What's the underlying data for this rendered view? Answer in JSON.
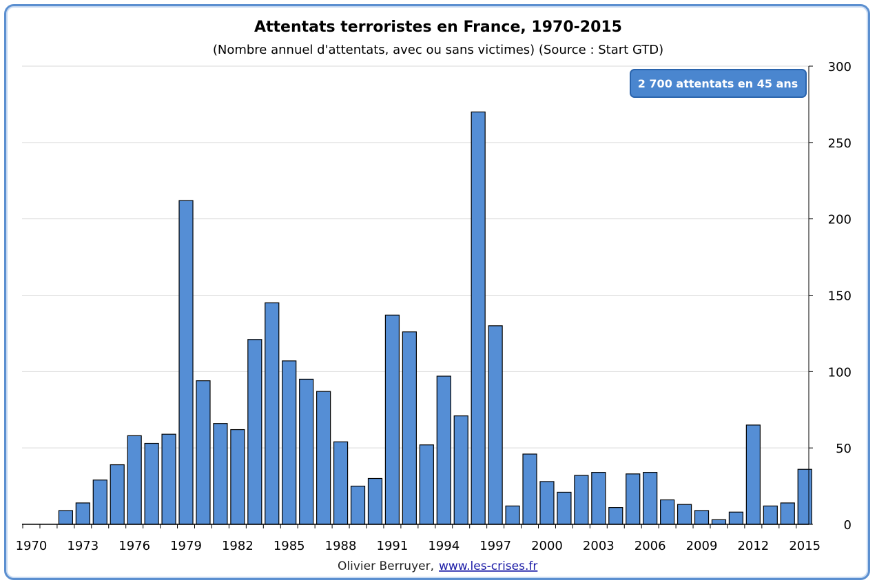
{
  "chart_data": {
    "type": "bar",
    "title": "Attentats terroristes en France,  1970-2015",
    "subtitle": "(Nombre annuel d'attentats, avec ou sans victimes) (Source : Start GTD)",
    "xlabel": "",
    "ylabel": "",
    "ylim": [
      0,
      300
    ],
    "y_ticks": [
      0,
      50,
      100,
      150,
      200,
      250,
      300
    ],
    "y_axis_side": "right",
    "grid": true,
    "x_tick_labels": [
      "1970",
      "1973",
      "1976",
      "1979",
      "1982",
      "1985",
      "1988",
      "1991",
      "1994",
      "1997",
      "2000",
      "2003",
      "2006",
      "2009",
      "2012",
      "2015"
    ],
    "categories": [
      1970,
      1971,
      1972,
      1973,
      1974,
      1975,
      1976,
      1977,
      1978,
      1979,
      1980,
      1981,
      1982,
      1983,
      1984,
      1985,
      1986,
      1987,
      1988,
      1989,
      1990,
      1991,
      1992,
      1993,
      1994,
      1995,
      1996,
      1997,
      1998,
      1999,
      2000,
      2001,
      2002,
      2003,
      2004,
      2005,
      2006,
      2007,
      2008,
      2009,
      2010,
      2011,
      2012,
      2013,
      2014,
      2015
    ],
    "values": [
      0,
      0,
      9,
      14,
      29,
      39,
      58,
      53,
      59,
      212,
      94,
      66,
      62,
      121,
      145,
      107,
      95,
      87,
      54,
      25,
      30,
      137,
      126,
      52,
      97,
      71,
      270,
      130,
      12,
      46,
      28,
      21,
      32,
      34,
      11,
      33,
      34,
      16,
      13,
      9,
      3,
      8,
      65,
      12,
      14,
      36
    ],
    "bar_color": "#558ed5",
    "annotation": "2 700 attentats  en 45 ans"
  },
  "footer": {
    "author": "Olivier Berruyer,",
    "link": "www.les-crises.fr"
  },
  "colors": {
    "frame": "#5b8fd0",
    "badge": "#4a86cf"
  }
}
